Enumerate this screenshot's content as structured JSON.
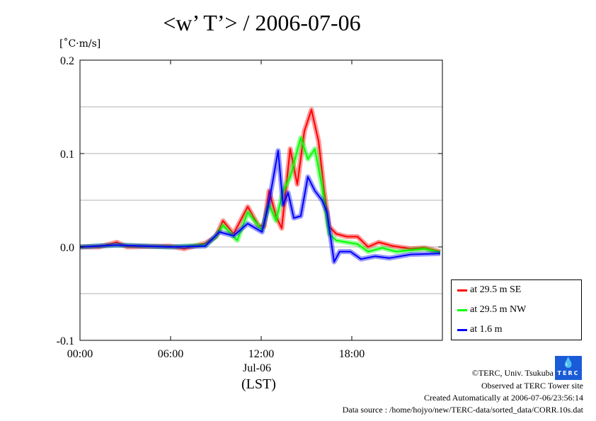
{
  "chart_data": {
    "type": "line",
    "title": "<w’ T’> / 2006-07-06",
    "ylabel": "[˚C·m/s]",
    "xlabel": "(LST)",
    "x_date_label": "Jul-06",
    "xlim": [
      0,
      24
    ],
    "ylim": [
      -0.1,
      0.2
    ],
    "x_ticks": [
      {
        "v": 0,
        "label": "00:00"
      },
      {
        "v": 6,
        "label": "06:00"
      },
      {
        "v": 12,
        "label": "12:00"
      },
      {
        "v": 18,
        "label": "18:00"
      }
    ],
    "y_ticks": [
      {
        "v": -0.1,
        "label": "-0.1"
      },
      {
        "v": 0,
        "label": "0.0"
      },
      {
        "v": 0.1,
        "label": "0.1"
      },
      {
        "v": 0.2,
        "label": "0.2"
      }
    ],
    "gridlines_y": [
      -0.05,
      0,
      0.05,
      0.1,
      0.15
    ],
    "grid": true,
    "legend_position": "right-bottom-outside",
    "series": [
      {
        "name": "at 29.5 m SE",
        "color": "#ff0000",
        "x": [
          0,
          1.27,
          2.44,
          3.14,
          5.95,
          6.89,
          8.3,
          9.0,
          9.47,
          10.17,
          11.11,
          11.81,
          12.19,
          12.52,
          12.98,
          13.36,
          13.92,
          14.39,
          14.86,
          15.33,
          15.8,
          16.17,
          16.5,
          16.97,
          17.67,
          18.38,
          19.08,
          19.78,
          20.72,
          21.89,
          22.83,
          23.86
        ],
        "y": [
          0,
          0,
          0.005,
          0,
          0.001,
          -0.002,
          0.004,
          0.011,
          0.028,
          0.014,
          0.043,
          0.023,
          0.022,
          0.06,
          0.033,
          0.02,
          0.105,
          0.067,
          0.124,
          0.147,
          0.113,
          0.06,
          0.022,
          0.014,
          0.011,
          0.011,
          0,
          0.005,
          0.001,
          -0.002,
          -0.001,
          -0.005
        ]
      },
      {
        "name": "at 29.5 m NW",
        "color": "#00ff00",
        "x": [
          0,
          2.44,
          5.95,
          8.3,
          9.0,
          9.47,
          10.41,
          11.11,
          12.05,
          12.52,
          12.98,
          13.45,
          13.92,
          14.62,
          15.09,
          15.56,
          16.03,
          16.5,
          16.97,
          17.67,
          18.38,
          19.08,
          20.02,
          20.95,
          22.83,
          23.86
        ],
        "y": [
          0,
          0.002,
          0,
          0.002,
          0.011,
          0.023,
          0.007,
          0.037,
          0.018,
          0.045,
          0.028,
          0.06,
          0.075,
          0.117,
          0.094,
          0.105,
          0.064,
          0.014,
          0.007,
          0.005,
          0.003,
          -0.005,
          -0.001,
          -0.005,
          -0.002,
          -0.006
        ]
      },
      {
        "name": "at 1.6 m",
        "color": "#0000ff",
        "x": [
          0,
          2.44,
          5.95,
          8.3,
          9.23,
          10.17,
          11.11,
          12.05,
          12.52,
          13.12,
          13.45,
          13.78,
          14.16,
          14.62,
          15.09,
          15.56,
          16.03,
          16.36,
          16.83,
          17.2,
          17.91,
          18.61,
          19.55,
          20.48,
          21.89,
          23.86
        ],
        "y": [
          0,
          0.002,
          0,
          0.001,
          0.016,
          0.012,
          0.025,
          0.016,
          0.048,
          0.103,
          0.045,
          0.058,
          0.031,
          0.033,
          0.075,
          0.06,
          0.05,
          0.037,
          -0.016,
          -0.005,
          -0.005,
          -0.013,
          -0.01,
          -0.012,
          -0.008,
          -0.007
        ]
      }
    ]
  },
  "credits": {
    "copyright": "©TERC, Univ. Tsukuba",
    "site": "Observed at TERC Tower site",
    "created": "Created Automatically at 2006-07-06/23:56:14",
    "source": "Data source : /home/hojyo/new/TERC-data/sorted_data/CORR.10s.dat",
    "logo_text": "TERC"
  }
}
